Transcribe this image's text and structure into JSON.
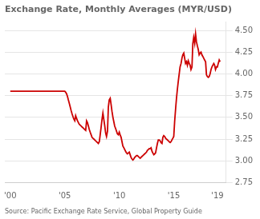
{
  "chart_data": {
    "type": "line",
    "title": "Exchange Rate, Monthly Averages (MYR/USD)",
    "annotations": [
      "Source: Pacific Exchange Rate Service, Global Property Guide"
    ],
    "color": "#cc0000",
    "grid": "y",
    "xlim": [
      1999.5,
      2019.8
    ],
    "xticks": [
      {
        "value": 2000,
        "label": "'00"
      },
      {
        "value": 2005,
        "label": "'05"
      },
      {
        "value": 2010,
        "label": "'10"
      },
      {
        "value": 2015,
        "label": "'15"
      },
      {
        "value": 2019,
        "label": "'19"
      }
    ],
    "ylim": [
      2.75,
      4.6
    ],
    "yticks": [
      2.75,
      {
        "value": 3.0,
        "label": "3.00"
      },
      3.25,
      {
        "value": 3.5,
        "label": "3.50"
      },
      3.75,
      {
        "value": 4.0,
        "label": "4.00"
      },
      4.25,
      {
        "value": 4.5,
        "label": "4.50"
      }
    ],
    "x": [
      2000.0,
      2000.08,
      2000.17,
      2000.25,
      2000.33,
      2000.42,
      2000.5,
      2000.58,
      2000.67,
      2000.75,
      2000.83,
      2000.92,
      2001.0,
      2001.08,
      2001.17,
      2001.25,
      2001.33,
      2001.42,
      2001.5,
      2001.58,
      2001.67,
      2001.75,
      2001.83,
      2001.92,
      2002.0,
      2002.08,
      2002.17,
      2002.25,
      2002.33,
      2002.42,
      2002.5,
      2002.58,
      2002.67,
      2002.75,
      2002.83,
      2002.92,
      2003.0,
      2003.08,
      2003.17,
      2003.25,
      2003.33,
      2003.42,
      2003.5,
      2003.58,
      2003.67,
      2003.75,
      2003.83,
      2003.92,
      2004.0,
      2004.08,
      2004.17,
      2004.25,
      2004.33,
      2004.42,
      2004.5,
      2004.58,
      2004.67,
      2004.75,
      2004.83,
      2004.92,
      2005.0,
      2005.08,
      2005.17,
      2005.25,
      2005.33,
      2005.42,
      2005.5,
      2005.58,
      2005.67,
      2005.75,
      2005.83,
      2005.92,
      2006.0,
      2006.08,
      2006.17,
      2006.25,
      2006.33,
      2006.42,
      2006.5,
      2006.58,
      2006.67,
      2006.75,
      2006.83,
      2006.92,
      2007.0,
      2007.08,
      2007.17,
      2007.25,
      2007.33,
      2007.42,
      2007.5,
      2007.58,
      2007.67,
      2007.75,
      2007.83,
      2007.92,
      2008.0,
      2008.08,
      2008.17,
      2008.25,
      2008.33,
      2008.42,
      2008.5,
      2008.58,
      2008.67,
      2008.75,
      2008.83,
      2008.92,
      2009.0,
      2009.08,
      2009.17,
      2009.25,
      2009.33,
      2009.42,
      2009.5,
      2009.58,
      2009.67,
      2009.75,
      2009.83,
      2009.92,
      2010.0,
      2010.08,
      2010.17,
      2010.25,
      2010.33,
      2010.42,
      2010.5,
      2010.58,
      2010.67,
      2010.75,
      2010.83,
      2010.92,
      2011.0,
      2011.08,
      2011.17,
      2011.25,
      2011.33,
      2011.42,
      2011.5,
      2011.58,
      2011.67,
      2011.75,
      2011.83,
      2011.92,
      2012.0,
      2012.08,
      2012.17,
      2012.25,
      2012.33,
      2012.42,
      2012.5,
      2012.58,
      2012.67,
      2012.75,
      2012.83,
      2012.92,
      2013.0,
      2013.08,
      2013.17,
      2013.25,
      2013.33,
      2013.42,
      2013.5,
      2013.58,
      2013.67,
      2013.75,
      2013.83,
      2013.92,
      2014.0,
      2014.08,
      2014.17,
      2014.25,
      2014.33,
      2014.42,
      2014.5,
      2014.58,
      2014.67,
      2014.75,
      2014.83,
      2014.92,
      2015.0,
      2015.08,
      2015.17,
      2015.25,
      2015.33,
      2015.42,
      2015.5,
      2015.58,
      2015.67,
      2015.75,
      2015.83,
      2015.92,
      2016.0,
      2016.08,
      2016.17,
      2016.25,
      2016.33,
      2016.42,
      2016.5,
      2016.58,
      2016.67,
      2016.75,
      2016.83,
      2016.92,
      2017.0,
      2017.08,
      2017.17,
      2017.25,
      2017.33,
      2017.42,
      2017.5,
      2017.58,
      2017.67,
      2017.75,
      2017.83,
      2017.92,
      2018.0,
      2018.08,
      2018.17,
      2018.25,
      2018.33,
      2018.42,
      2018.5,
      2018.58,
      2018.67,
      2018.75,
      2018.83,
      2018.92,
      2019.0,
      2019.08,
      2019.17,
      2019.25
    ],
    "values": [
      3.8,
      3.8,
      3.8,
      3.8,
      3.8,
      3.8,
      3.8,
      3.8,
      3.8,
      3.8,
      3.8,
      3.8,
      3.8,
      3.8,
      3.8,
      3.8,
      3.8,
      3.8,
      3.8,
      3.8,
      3.8,
      3.8,
      3.8,
      3.8,
      3.8,
      3.8,
      3.8,
      3.8,
      3.8,
      3.8,
      3.8,
      3.8,
      3.8,
      3.8,
      3.8,
      3.8,
      3.8,
      3.8,
      3.8,
      3.8,
      3.8,
      3.8,
      3.8,
      3.8,
      3.8,
      3.8,
      3.8,
      3.8,
      3.8,
      3.8,
      3.8,
      3.8,
      3.8,
      3.8,
      3.8,
      3.8,
      3.8,
      3.8,
      3.8,
      3.8,
      3.8,
      3.79,
      3.77,
      3.74,
      3.7,
      3.66,
      3.62,
      3.58,
      3.54,
      3.51,
      3.48,
      3.46,
      3.52,
      3.49,
      3.46,
      3.44,
      3.42,
      3.41,
      3.4,
      3.39,
      3.38,
      3.37,
      3.36,
      3.35,
      3.46,
      3.44,
      3.4,
      3.36,
      3.33,
      3.3,
      3.27,
      3.26,
      3.25,
      3.24,
      3.23,
      3.22,
      3.21,
      3.2,
      3.22,
      3.3,
      3.38,
      3.48,
      3.55,
      3.48,
      3.4,
      3.32,
      3.28,
      3.34,
      3.62,
      3.7,
      3.72,
      3.65,
      3.57,
      3.5,
      3.45,
      3.4,
      3.37,
      3.34,
      3.31,
      3.3,
      3.33,
      3.3,
      3.27,
      3.22,
      3.17,
      3.15,
      3.13,
      3.11,
      3.09,
      3.08,
      3.09,
      3.1,
      3.07,
      3.04,
      3.02,
      3.01,
      3.02,
      3.04,
      3.05,
      3.06,
      3.06,
      3.05,
      3.04,
      3.03,
      3.04,
      3.05,
      3.06,
      3.07,
      3.08,
      3.09,
      3.1,
      3.12,
      3.13,
      3.14,
      3.14,
      3.15,
      3.11,
      3.09,
      3.07,
      3.08,
      3.09,
      3.15,
      3.2,
      3.24,
      3.24,
      3.23,
      3.21,
      3.2,
      3.27,
      3.29,
      3.28,
      3.26,
      3.25,
      3.24,
      3.23,
      3.22,
      3.21,
      3.22,
      3.24,
      3.26,
      3.28,
      3.45,
      3.6,
      3.72,
      3.82,
      3.92,
      4.0,
      4.08,
      4.12,
      4.18,
      4.22,
      4.24,
      4.18,
      4.12,
      4.14,
      4.1,
      4.15,
      4.12,
      4.1,
      4.05,
      4.08,
      4.35,
      4.42,
      4.35,
      4.46,
      4.37,
      4.32,
      4.28,
      4.22,
      4.24,
      4.25,
      4.22,
      4.2,
      4.18,
      4.16,
      4.14,
      3.99,
      3.97,
      3.96,
      3.97,
      4.0,
      4.05,
      4.08,
      4.1,
      4.12,
      4.1,
      4.05,
      4.08,
      4.08,
      4.12,
      4.16,
      4.14
    ]
  }
}
